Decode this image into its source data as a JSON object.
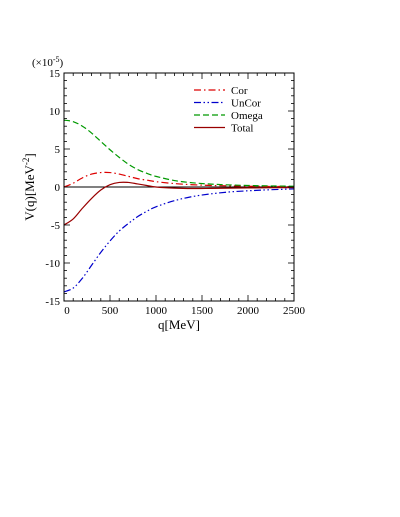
{
  "chart_data": {
    "type": "line",
    "title": "",
    "xlabel": "q[MeV]",
    "ylabel": "V(q)[MeV",
    "ylabel_exp": "-2",
    "ylabel_close": "]",
    "scale_note": "(×10",
    "scale_exp": "-5",
    "scale_close": ")",
    "xlim": [
      0,
      2500
    ],
    "ylim": [
      -15,
      15
    ],
    "xticks": [
      0,
      500,
      1000,
      1500,
      2000,
      2500
    ],
    "xtick_labels": [
      "0",
      "500",
      "1000",
      "1500",
      "2000",
      "2500"
    ],
    "yticks": [
      -15,
      -10,
      -5,
      0,
      5,
      10,
      15
    ],
    "ytick_labels": [
      "-15",
      "-10",
      "-5",
      "0",
      "5",
      "10",
      "15"
    ],
    "grid": false,
    "legend_position": "top-right",
    "zero_line": true,
    "series": [
      {
        "name": "Cor",
        "color": "#dd0000",
        "dash": "dashdot",
        "x": [
          0,
          100,
          200,
          300,
          400,
          500,
          600,
          700,
          800,
          900,
          1000,
          1200,
          1400,
          1600,
          1800,
          2000,
          2200,
          2500
        ],
        "y": [
          0.0,
          0.5,
          1.2,
          1.7,
          1.9,
          1.9,
          1.7,
          1.4,
          1.1,
          0.9,
          0.7,
          0.45,
          0.3,
          0.2,
          0.15,
          0.1,
          0.08,
          0.05
        ]
      },
      {
        "name": "UnCor",
        "color": "#0000cc",
        "dash": "dashdotdot",
        "x": [
          0,
          100,
          200,
          300,
          400,
          500,
          600,
          700,
          800,
          900,
          1000,
          1200,
          1400,
          1600,
          1800,
          2000,
          2200,
          2500
        ],
        "y": [
          -13.8,
          -13.3,
          -12.0,
          -10.3,
          -8.6,
          -7.1,
          -5.8,
          -4.8,
          -3.9,
          -3.2,
          -2.6,
          -1.8,
          -1.25,
          -0.9,
          -0.65,
          -0.5,
          -0.38,
          -0.25
        ]
      },
      {
        "name": "Omega",
        "color": "#009900",
        "dash": "dashed",
        "x": [
          0,
          100,
          200,
          300,
          400,
          500,
          600,
          700,
          800,
          900,
          1000,
          1200,
          1400,
          1600,
          1800,
          2000,
          2200,
          2500
        ],
        "y": [
          8.8,
          8.6,
          8.0,
          7.1,
          6.0,
          4.9,
          3.9,
          3.0,
          2.3,
          1.8,
          1.4,
          0.85,
          0.55,
          0.38,
          0.27,
          0.2,
          0.15,
          0.1
        ]
      },
      {
        "name": "Total",
        "color": "#990000",
        "dash": "solid",
        "x": [
          0,
          100,
          200,
          300,
          400,
          500,
          600,
          700,
          800,
          900,
          1000,
          1200,
          1400,
          1600,
          1800,
          2000,
          2200,
          2500
        ],
        "y": [
          -5.0,
          -4.2,
          -2.8,
          -1.5,
          -0.4,
          0.3,
          0.6,
          0.6,
          0.4,
          0.2,
          0.0,
          -0.15,
          -0.2,
          -0.18,
          -0.15,
          -0.12,
          -0.1,
          -0.08
        ]
      }
    ]
  }
}
